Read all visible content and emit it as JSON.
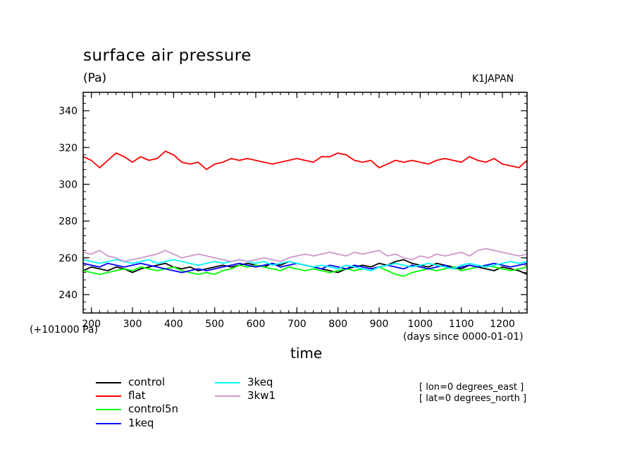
{
  "chart_data": {
    "type": "line",
    "title": "surface air pressure",
    "units": "(Pa)",
    "tag": "K1JAPAN",
    "offset_label": "(+101000 Pa)",
    "xlabel": "time",
    "xunits": "(days since 0000-01-01)",
    "xlim": [
      180,
      1260
    ],
    "ylim": [
      230,
      350
    ],
    "x_ticks": [
      200,
      300,
      400,
      500,
      600,
      700,
      800,
      900,
      1000,
      1100,
      1200
    ],
    "y_ticks": [
      240,
      260,
      280,
      300,
      320,
      340
    ],
    "grid": false,
    "legend_position": "below",
    "x": [
      180,
      200,
      220,
      240,
      260,
      280,
      300,
      320,
      340,
      360,
      380,
      400,
      420,
      440,
      460,
      480,
      500,
      520,
      540,
      560,
      580,
      600,
      620,
      640,
      660,
      680,
      700,
      720,
      740,
      760,
      780,
      800,
      820,
      840,
      860,
      880,
      900,
      920,
      940,
      960,
      980,
      1000,
      1020,
      1040,
      1060,
      1080,
      1100,
      1120,
      1140,
      1160,
      1180,
      1200,
      1220,
      1240,
      1260
    ],
    "series": [
      {
        "name": "control",
        "color": "#000000",
        "values": [
          253,
          255,
          254,
          253,
          255,
          254,
          252,
          254,
          255,
          256,
          257,
          255,
          254,
          255,
          253,
          254,
          255,
          256,
          255,
          256,
          257,
          256,
          255,
          257,
          256,
          258,
          257,
          256,
          255,
          254,
          253,
          252,
          254,
          255,
          256,
          255,
          257,
          256,
          258,
          259,
          257,
          256,
          255,
          257,
          256,
          255,
          254,
          256,
          255,
          254,
          253,
          255,
          254,
          253,
          251
        ]
      },
      {
        "name": "flat",
        "color": "#ff0000",
        "values": [
          315,
          313,
          309,
          313,
          317,
          315,
          312,
          315,
          313,
          314,
          318,
          316,
          312,
          311,
          312,
          308,
          311,
          312,
          314,
          313,
          314,
          313,
          312,
          311,
          312,
          313,
          314,
          313,
          312,
          315,
          315,
          317,
          316,
          313,
          312,
          313,
          309,
          311,
          313,
          312,
          313,
          312,
          311,
          313,
          314,
          313,
          312,
          315,
          313,
          312,
          314,
          311,
          310,
          309,
          313
        ]
      },
      {
        "name": "control5n",
        "color": "#00ff00",
        "values": [
          253,
          252,
          251,
          252,
          253,
          254,
          253,
          255,
          254,
          253,
          254,
          255,
          253,
          252,
          251,
          252,
          251,
          253,
          254,
          256,
          255,
          256,
          255,
          254,
          253,
          255,
          254,
          253,
          254,
          253,
          252,
          253,
          254,
          253,
          254,
          253,
          255,
          253,
          251,
          250,
          252,
          253,
          254,
          253,
          254,
          255,
          253,
          254,
          255,
          256,
          255,
          254,
          253,
          254,
          255
        ]
      },
      {
        "name": "1keq",
        "color": "#0000ff",
        "values": [
          257,
          256,
          255,
          257,
          256,
          255,
          256,
          257,
          256,
          255,
          254,
          253,
          252,
          253,
          254,
          253,
          254,
          255,
          256,
          257,
          256,
          255,
          256,
          257,
          255,
          256,
          257,
          256,
          255,
          254,
          256,
          255,
          254,
          256,
          255,
          254,
          255,
          256,
          255,
          254,
          256,
          255,
          254,
          255,
          256,
          254,
          255,
          256,
          255,
          256,
          257,
          256,
          255,
          256,
          257
        ]
      },
      {
        "name": "3keq",
        "color": "#00ffff",
        "values": [
          259,
          258,
          257,
          258,
          259,
          258,
          257,
          258,
          259,
          257,
          258,
          259,
          258,
          257,
          256,
          257,
          258,
          257,
          258,
          259,
          258,
          257,
          258,
          256,
          257,
          258,
          257,
          256,
          255,
          256,
          255,
          254,
          256,
          255,
          254,
          253,
          255,
          256,
          257,
          256,
          255,
          256,
          257,
          256,
          255,
          254,
          256,
          257,
          256,
          255,
          256,
          257,
          258,
          257,
          258
        ]
      },
      {
        "name": "3kw1",
        "color": "#cc99cc",
        "values": [
          263,
          262,
          264,
          261,
          260,
          258,
          259,
          260,
          261,
          262,
          264,
          262,
          260,
          261,
          262,
          261,
          260,
          259,
          258,
          259,
          258,
          259,
          260,
          259,
          258,
          260,
          261,
          262,
          261,
          262,
          263,
          262,
          261,
          263,
          262,
          263,
          264,
          261,
          262,
          260,
          259,
          261,
          260,
          262,
          261,
          262,
          263,
          261,
          264,
          265,
          264,
          263,
          262,
          261,
          262
        ]
      }
    ]
  },
  "info_lines": [
    "[ lon=0 degrees_east ]",
    "[ lat=0 degrees_north ]"
  ]
}
